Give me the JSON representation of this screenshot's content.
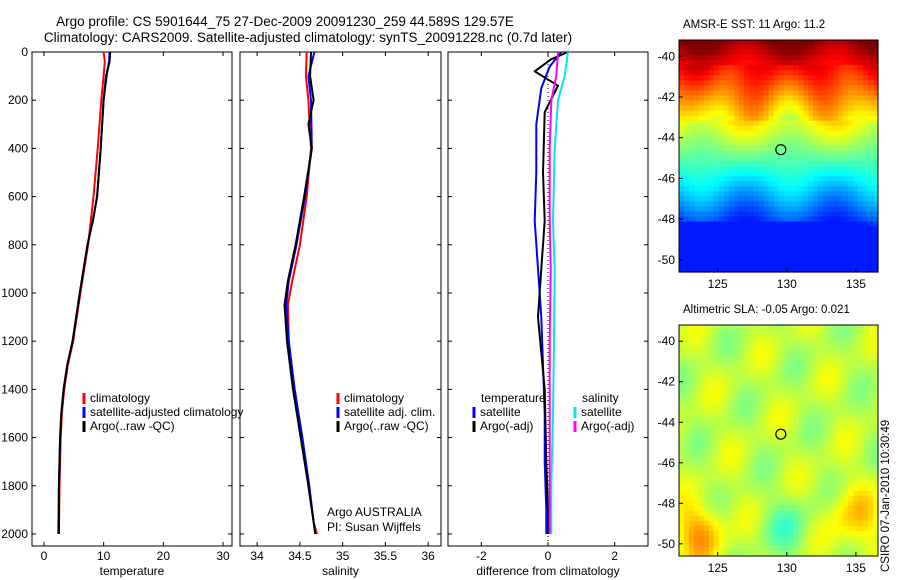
{
  "header": {
    "line1": "Argo profile: CS 5901644_75 27-Dec-2009 20091230_259 44.589S 129.57E",
    "line2": "Climatology: CARS2009. Satellite-adjusted climatology: synTS_20091228.nc (0.7d later)"
  },
  "stamp": "CSIRO 07-Jan-2010 10:30:49",
  "colors": {
    "climatology": "#ff0000",
    "satellite": "#0000ff",
    "argo": "#000000",
    "sal_satellite": "#00e5ee",
    "sal_argo": "#ff00ff"
  },
  "chart_data": [
    {
      "type": "line",
      "panel": "temperature",
      "xlabel": "temperature",
      "ylabel": "",
      "xlim": [
        -2,
        31.5
      ],
      "ylim": [
        2050,
        0
      ],
      "xticks": [
        "0",
        "10",
        "20",
        "30"
      ],
      "xtick_values": [
        0,
        10,
        20,
        30
      ],
      "yticks": [
        "0",
        "200",
        "400",
        "600",
        "800",
        "1000",
        "1200",
        "1400",
        "1600",
        "1800",
        "2000"
      ],
      "ytick_values": [
        0,
        200,
        400,
        600,
        800,
        1000,
        1200,
        1400,
        1600,
        1800,
        2000
      ],
      "legend": {
        "placement": "lower-right",
        "entries": [
          "climatology",
          "satellite-adjusted climatology",
          "Argo(..raw -QC)"
        ]
      },
      "series": [
        {
          "name": "climatology",
          "color": "#ff0000",
          "x": [
            10.0,
            10.2,
            10.0,
            9.6,
            9.0,
            8.3,
            7.4,
            6.1,
            4.9,
            4.0,
            3.4,
            3.0,
            2.8,
            2.6,
            2.5
          ],
          "y": [
            0,
            40,
            100,
            200,
            400,
            600,
            800,
            1000,
            1200,
            1300,
            1400,
            1500,
            1600,
            1800,
            2000
          ]
        },
        {
          "name": "satellite-adjusted climatology",
          "color": "#0000ff",
          "x": [
            11.0,
            10.9,
            10.5,
            10.0,
            9.5,
            8.9,
            8.2,
            7.3,
            6.0,
            4.8,
            3.9,
            3.3,
            2.9,
            2.7,
            2.5,
            2.4
          ],
          "y": [
            0,
            40,
            100,
            200,
            400,
            600,
            700,
            800,
            1000,
            1200,
            1300,
            1400,
            1500,
            1600,
            1800,
            2000
          ]
        },
        {
          "name": "Argo(..raw -QC)",
          "color": "#000000",
          "x": [
            11.1,
            11.0,
            10.4,
            10.0,
            9.5,
            8.9,
            8.2,
            7.3,
            6.0,
            4.8,
            3.9,
            3.3,
            2.9,
            2.7,
            2.5,
            2.5
          ],
          "y": [
            0,
            40,
            100,
            200,
            400,
            600,
            700,
            800,
            1000,
            1200,
            1300,
            1400,
            1500,
            1600,
            1800,
            2000
          ]
        }
      ]
    },
    {
      "type": "line",
      "panel": "salinity",
      "xlabel": "salinity",
      "xlim": [
        33.8,
        36.15
      ],
      "ylim": [
        2050,
        0
      ],
      "xticks": [
        "34",
        "34.5",
        "35",
        "35.5",
        "36"
      ],
      "xtick_values": [
        34,
        34.5,
        35,
        35.5,
        36
      ],
      "legend": {
        "placement": "lower-right",
        "entries": [
          "climatology",
          "satellite adj. clim.",
          "Argo(..raw -QC)"
        ]
      },
      "annotation": [
        "Argo AUSTRALIA",
        "PI: Susan Wijffels"
      ],
      "series": [
        {
          "name": "climatology",
          "color": "#ff0000",
          "x": [
            34.58,
            34.57,
            34.6,
            34.63,
            34.58,
            34.5,
            34.41,
            34.36,
            34.37,
            34.43,
            34.52,
            34.6,
            34.66,
            34.7
          ],
          "y": [
            0,
            100,
            200,
            400,
            600,
            800,
            950,
            1050,
            1200,
            1400,
            1600,
            1800,
            1950,
            2000
          ]
        },
        {
          "name": "satellite adj. clim.",
          "color": "#0000ff",
          "x": [
            34.67,
            34.6,
            34.63,
            34.64,
            34.56,
            34.46,
            34.37,
            34.34,
            34.37,
            34.44,
            34.53,
            34.61,
            34.66,
            34.68
          ],
          "y": [
            0,
            100,
            200,
            400,
            600,
            800,
            950,
            1050,
            1200,
            1400,
            1600,
            1800,
            1950,
            2000
          ]
        },
        {
          "name": "Argo(..raw -QC)",
          "color": "#000000",
          "x": [
            34.63,
            34.62,
            34.66,
            34.6,
            34.64,
            34.55,
            34.45,
            34.36,
            34.32,
            34.35,
            34.42,
            34.51,
            34.6,
            34.66,
            34.68
          ],
          "y": [
            0,
            100,
            200,
            300,
            400,
            600,
            800,
            950,
            1050,
            1200,
            1400,
            1600,
            1800,
            1950,
            2000
          ]
        }
      ]
    },
    {
      "type": "line",
      "panel": "difference",
      "xlabel": "difference from climatology",
      "xlim": [
        -3.0,
        3.0
      ],
      "ylim": [
        2050,
        0
      ],
      "xticks": [
        "-2",
        "0",
        "2"
      ],
      "xtick_values": [
        -2,
        0,
        2
      ],
      "legend": {
        "placement": "lower-center",
        "temperature_header": "temperature",
        "temperature_entries": [
          "satellite",
          "Argo(-adj)"
        ],
        "salinity_header": "salinity",
        "salinity_entries": [
          "satellite",
          "Argo(-adj)"
        ]
      },
      "series": [
        {
          "name": "temperature satellite",
          "color": "#0000ff",
          "x": [
            0.4,
            0.05,
            -0.2,
            -0.35,
            -0.35,
            -0.4,
            -0.3,
            -0.2,
            -0.15,
            -0.1,
            -0.1,
            -0.05,
            -0.05
          ],
          "y": [
            0,
            60,
            150,
            300,
            500,
            700,
            900,
            1100,
            1300,
            1500,
            1700,
            1900,
            2000
          ]
        },
        {
          "name": "temperature Argo(-adj)",
          "color": "#000000",
          "x": [
            0.6,
            0.1,
            -0.4,
            0.3,
            -0.1,
            -0.15,
            -0.1,
            -0.2,
            -0.3,
            -0.1,
            -0.05,
            0.0,
            0.0
          ],
          "y": [
            0,
            30,
            80,
            140,
            250,
            500,
            700,
            900,
            1100,
            1400,
            1700,
            1900,
            2000
          ]
        },
        {
          "name": "salinity satellite",
          "color": "#00e5ee",
          "x": [
            0.6,
            0.5,
            0.3,
            0.2,
            0.15,
            0.2,
            0.18,
            0.15,
            0.1,
            0.1
          ],
          "y": [
            0,
            100,
            200,
            400,
            700,
            900,
            1200,
            1500,
            1800,
            2000
          ]
        },
        {
          "name": "salinity Argo(-adj)",
          "color": "#ff00ff",
          "x": [
            0.3,
            0.25,
            0.1,
            0.05,
            0.05,
            0.08,
            0.05,
            0.05,
            0.05,
            0.05
          ],
          "y": [
            0,
            100,
            200,
            400,
            700,
            900,
            1200,
            1500,
            1800,
            2000
          ]
        }
      ]
    },
    {
      "type": "heatmap",
      "panel": "sst-map",
      "title": "AMSR-E SST: 11 Argo: 11.2",
      "xlim": [
        122.2,
        136.6
      ],
      "ylim": [
        -50.6,
        -39.2
      ],
      "xticks": [
        "125",
        "130",
        "135"
      ],
      "xtick_values": [
        125,
        130,
        135
      ],
      "yticks": [
        "-40",
        "-42",
        "-44",
        "-46",
        "-48",
        "-50"
      ],
      "ytick_values": [
        -40,
        -42,
        -44,
        -46,
        -48,
        -50
      ],
      "marker": {
        "lon": 129.57,
        "lat": -44.589
      }
    },
    {
      "type": "heatmap",
      "panel": "sla-map",
      "title": "Altimetric SLA: -0.05 Argo: 0.021",
      "xlim": [
        122.2,
        136.6
      ],
      "ylim": [
        -50.6,
        -39.2
      ],
      "xticks": [
        "125",
        "130",
        "135"
      ],
      "xtick_values": [
        125,
        130,
        135
      ],
      "yticks": [
        "-40",
        "-42",
        "-44",
        "-46",
        "-48",
        "-50"
      ],
      "ytick_values": [
        -40,
        -42,
        -44,
        -46,
        -48,
        -50
      ],
      "marker": {
        "lon": 129.57,
        "lat": -44.589
      }
    }
  ]
}
